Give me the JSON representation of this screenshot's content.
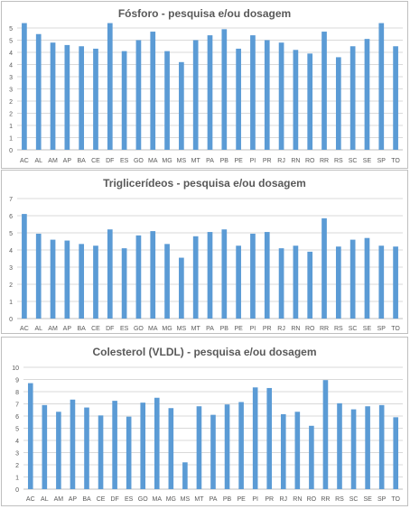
{
  "chart_data": [
    {
      "type": "bar",
      "title": "Fósforo - pesquisa e/ou dosagem",
      "categories": [
        "AC",
        "AL",
        "AM",
        "AP",
        "BA",
        "CE",
        "DF",
        "ES",
        "GO",
        "MA",
        "MG",
        "MS",
        "MT",
        "PA",
        "PB",
        "PE",
        "PI",
        "PR",
        "RJ",
        "RN",
        "RO",
        "RR",
        "RS",
        "SC",
        "SE",
        "SP",
        "TO"
      ],
      "values": [
        5.45,
        4.75,
        4.4,
        4.3,
        4.25,
        4.15,
        5.45,
        4.05,
        4.5,
        4.85,
        4.05,
        3.6,
        4.5,
        4.7,
        4.95,
        4.15,
        4.7,
        4.5,
        4.4,
        4.1,
        3.95,
        4.85,
        3.8,
        4.25,
        4.55,
        5.35,
        4.25
      ],
      "ylim": [
        0,
        5
      ],
      "ymin_tick": 0,
      "ymax_tick": 5,
      "ystep": 0.5,
      "ytick_labels": [
        "0",
        "1",
        "1",
        "2",
        "2",
        "3",
        "3",
        "4",
        "4",
        "5",
        "5"
      ],
      "grid": true,
      "color": "#5b9bd5"
    },
    {
      "type": "bar",
      "title": "Triglicerídeos - pesquisa e/ou dosagem",
      "categories": [
        "AC",
        "AL",
        "AM",
        "AP",
        "BA",
        "CE",
        "DF",
        "ES",
        "GO",
        "MA",
        "MG",
        "MS",
        "MT",
        "PA",
        "PB",
        "PE",
        "PI",
        "PR",
        "RJ",
        "RN",
        "RO",
        "RR",
        "RS",
        "SC",
        "SE",
        "SP",
        "TO"
      ],
      "values": [
        6.1,
        4.95,
        4.6,
        4.55,
        4.35,
        4.25,
        5.2,
        4.1,
        4.85,
        5.1,
        4.35,
        3.55,
        4.8,
        5.05,
        5.2,
        4.25,
        4.95,
        5.05,
        4.1,
        4.25,
        3.9,
        5.85,
        4.2,
        4.6,
        4.7,
        4.25,
        4.2
      ],
      "ylim": [
        0,
        7
      ],
      "ymin_tick": 0,
      "ymax_tick": 7,
      "ystep": 1,
      "ytick_labels": [
        "0",
        "1",
        "2",
        "3",
        "4",
        "5",
        "6",
        "7"
      ],
      "grid": true,
      "color": "#5b9bd5"
    },
    {
      "type": "bar",
      "title": "Colesterol (VLDL) - pesquisa e/ou dosagem",
      "categories": [
        "AC",
        "AL",
        "AM",
        "AP",
        "BA",
        "CE",
        "DF",
        "ES",
        "GO",
        "MA",
        "MG",
        "MS",
        "MT",
        "PA",
        "PB",
        "PE",
        "PI",
        "PR",
        "RJ",
        "RN",
        "RO",
        "RR",
        "RS",
        "SC",
        "SE",
        "SP",
        "TO"
      ],
      "values": [
        8.7,
        6.9,
        6.35,
        7.35,
        6.7,
        6.05,
        7.25,
        5.95,
        7.1,
        7.5,
        6.65,
        2.2,
        6.8,
        6.1,
        6.95,
        7.15,
        8.35,
        8.3,
        6.15,
        6.35,
        5.2,
        8.95,
        7.05,
        6.55,
        6.8,
        6.9,
        5.9
      ],
      "ylim": [
        0,
        10
      ],
      "ymin_tick": 0,
      "ymax_tick": 10,
      "ystep": 1,
      "ytick_labels": [
        "0",
        "1",
        "2",
        "3",
        "4",
        "5",
        "6",
        "7",
        "8",
        "9",
        "10"
      ],
      "grid": true,
      "color": "#5b9bd5"
    }
  ]
}
